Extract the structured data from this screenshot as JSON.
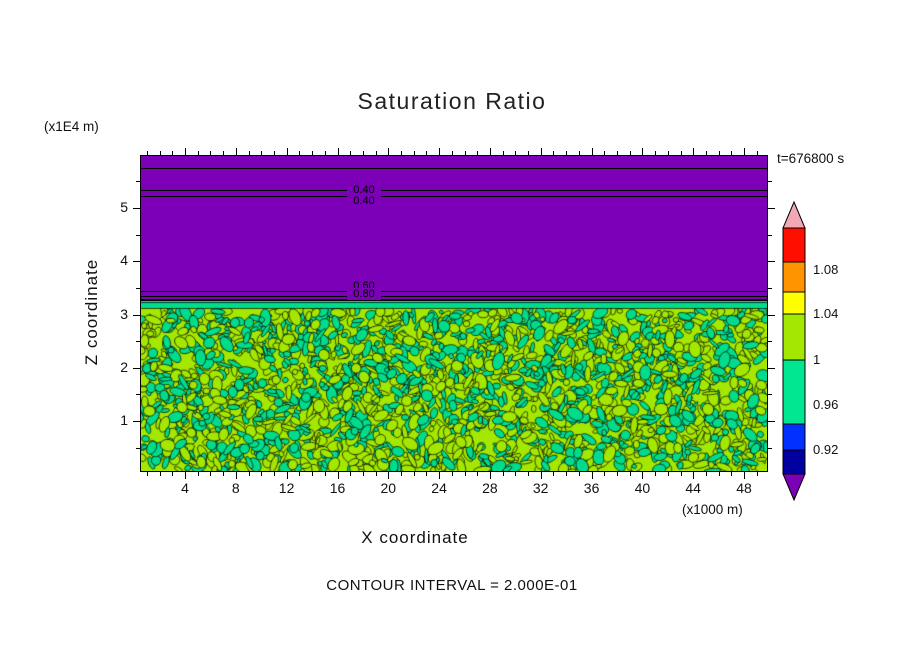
{
  "title": "Saturation Ratio",
  "annotations": {
    "y_axis_units": "(x1E4 m)",
    "x_axis_units": "(x1000 m)",
    "time_stamp": "t=676800 s",
    "contour_note": "CONTOUR INTERVAL = 2.000E-01"
  },
  "axes": {
    "x_label": "X coordinate",
    "y_label": "Z coordinate",
    "x_tick_labels": [
      "4",
      "8",
      "12",
      "16",
      "20",
      "24",
      "28",
      "32",
      "36",
      "40",
      "44",
      "48"
    ],
    "y_tick_labels": [
      "5",
      "4",
      "3",
      "2",
      "1"
    ]
  },
  "colorbar": {
    "tick_labels": [
      "1.08",
      "1.04",
      "1",
      "0.96",
      "0.92"
    ],
    "segments_top_to_bottom": [
      {
        "name": "above-range-arrow",
        "color": "#F2A8B4"
      },
      {
        "name": "red",
        "color": "#FF0F00"
      },
      {
        "name": "orange",
        "color": "#FF9400"
      },
      {
        "name": "yellow",
        "color": "#FFFF00"
      },
      {
        "name": "green-yellow",
        "color": "#A4E700"
      },
      {
        "name": "spring-green",
        "color": "#00E691"
      },
      {
        "name": "blue",
        "color": "#0031FF"
      },
      {
        "name": "navy",
        "color": "#0000A0"
      },
      {
        "name": "below-range-arrow",
        "color": "#7B00B8"
      }
    ]
  },
  "plot": {
    "upper_region_color": "#7B00B8",
    "field_color_a": "#A4E700",
    "field_color_b": "#00DC8C",
    "contour_labels": [
      "0.40",
      "0.40",
      "0.60",
      "0.80"
    ]
  },
  "chart_data": {
    "type": "heatmap",
    "subtype": "filled-contour-plot",
    "title": "Saturation Ratio",
    "xlabel": "X coordinate",
    "x_units": "(x1000 m)",
    "ylabel": "Z coordinate",
    "y_units": "(x1E4 m)",
    "xlim": [
      0,
      50
    ],
    "ylim": [
      0,
      6
    ],
    "x_ticks": [
      4,
      8,
      12,
      16,
      20,
      24,
      28,
      32,
      36,
      40,
      44,
      48
    ],
    "y_ticks": [
      1,
      2,
      3,
      4,
      5
    ],
    "time_annotation": "t=676800 s",
    "contour_interval": "2.000E-01",
    "colorbar_ticks": [
      1.08,
      1.04,
      1,
      0.96,
      0.92
    ],
    "colorbar_extends": "both arrows (above 1.08+ pink, below 0.92- purple)",
    "regions": [
      {
        "name": "upper-subsaturated-layer",
        "z_extent_x1E4m": [
          3.25,
          6.0
        ],
        "approx_value_range": [
          0.3,
          0.9
        ],
        "fill": "uniform purple (below colorbar minimum)",
        "contour_lines_z_x1E4m": [
          5.7,
          5.3,
          5.2,
          3.4,
          3.3
        ],
        "contour_line_labels": [
          "0.40",
          "0.40",
          "0.60",
          "0.80"
        ]
      },
      {
        "name": "lower-saturated-layer",
        "z_extent_x1E4m": [
          0.0,
          3.25
        ],
        "approx_value_range": [
          0.96,
          1.04
        ],
        "fill": "fine speckled noise of green-yellow (ratio slightly above 1) and spring-green (ratio slightly below 1) with black contour outlines at saturation ratio = 1"
      }
    ]
  }
}
